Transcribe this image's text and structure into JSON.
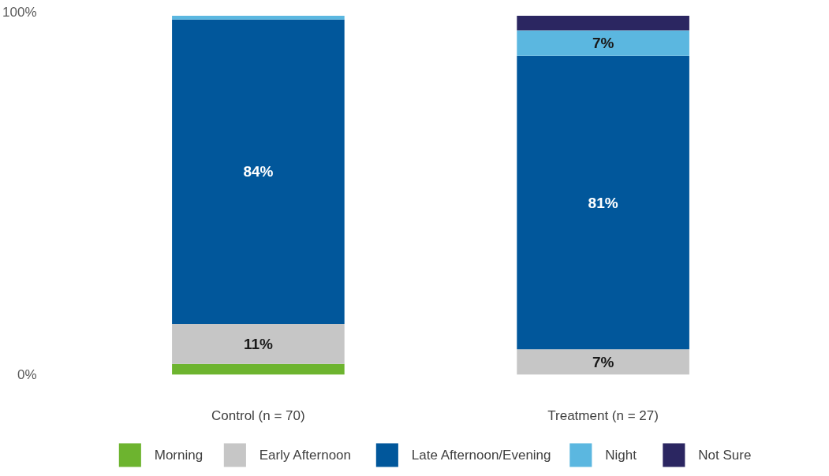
{
  "chart_data": {
    "type": "bar",
    "stacked": true,
    "categories": [
      "Control (n = 70)",
      "Treatment (n = 27)"
    ],
    "ylim": [
      0,
      100
    ],
    "yticks": [
      {
        "value": 0,
        "label": "0%"
      },
      {
        "value": 100,
        "label": "100%"
      }
    ],
    "grid": false,
    "legend": "bottom",
    "series": [
      {
        "name": "Morning",
        "color": "#6db42f",
        "values": [
          3,
          null
        ],
        "value_labels": [
          null,
          null
        ]
      },
      {
        "name": "Early Afternoon",
        "color": "#c6c6c6",
        "values": [
          11,
          7
        ],
        "value_labels": [
          "11%",
          "7%"
        ]
      },
      {
        "name": "Late Afternoon/Evening",
        "color": "#01579b",
        "values": [
          84,
          81
        ],
        "value_labels": [
          "84%",
          "81%"
        ]
      },
      {
        "name": "Night",
        "color": "#5bb7e0",
        "values": [
          1,
          7
        ],
        "value_labels": [
          null,
          "7%"
        ]
      },
      {
        "name": "Not Sure",
        "color": "#2b2661",
        "values": [
          null,
          4
        ],
        "value_labels": [
          null,
          null
        ]
      }
    ]
  }
}
